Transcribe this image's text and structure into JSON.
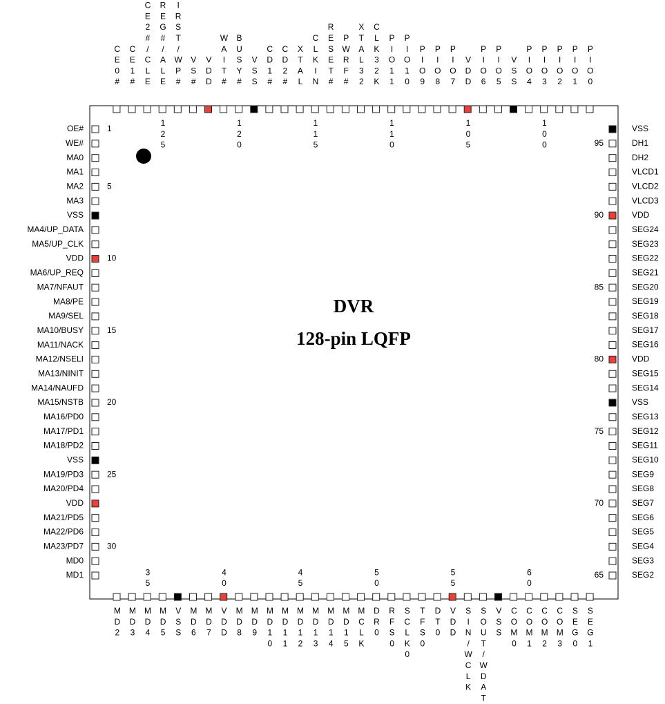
{
  "title": "DVR",
  "subtitle": "128-pin LQFP",
  "pin_colors": {
    "VDD": "#e8413c",
    "VSS": "#000000"
  },
  "left": {
    "pins": [
      "OE#",
      "WE#",
      "MA0",
      "MA1",
      "MA2",
      "MA3",
      "VSS",
      "MA4/UP_DATA",
      "MA5/UP_CLK",
      "VDD",
      "MA6/UP_REQ",
      "MA7/NFAUT",
      "MA8/PE",
      "MA9/SEL",
      "MA10/BUSY",
      "MA11/NACK",
      "MA12/NSELI",
      "MA13/NINIT",
      "MA14/NAUFD",
      "MA15/NSTB",
      "MA16/PD0",
      "MA17/PD1",
      "MA18/PD2",
      "VSS",
      "MA19/PD3",
      "MA20/PD4",
      "VDD",
      "MA21/PD5",
      "MA22/PD6",
      "MA23/PD7",
      "MD0",
      "MD1"
    ],
    "numbers": [
      1,
      null,
      null,
      null,
      5,
      null,
      null,
      null,
      null,
      10,
      null,
      null,
      null,
      null,
      15,
      null,
      null,
      null,
      null,
      20,
      null,
      null,
      null,
      null,
      25,
      null,
      null,
      null,
      null,
      30,
      null,
      null
    ]
  },
  "bottom": {
    "pins": [
      "MD2",
      "MD3",
      "MD4",
      "MD5",
      "VSS",
      "MD6",
      "MD7",
      "VDD",
      "MD8",
      "MD9",
      "MD10",
      "MD11",
      "MD12",
      "MD13",
      "MD14",
      "MD15",
      "MCLK",
      "DR0",
      "RFS0",
      "SCLK0",
      "TFS0",
      "DT0",
      "VDD",
      "SIN/WCLK",
      "SOUT/WDATA",
      "VSS",
      "COM0",
      "COM1",
      "COM2",
      "COM3",
      "SEG0",
      "SEG1"
    ],
    "numbers": [
      null,
      null,
      35,
      null,
      null,
      null,
      null,
      40,
      null,
      null,
      null,
      null,
      45,
      null,
      null,
      null,
      null,
      50,
      null,
      null,
      null,
      null,
      55,
      null,
      null,
      null,
      null,
      60,
      null,
      null,
      null,
      null
    ]
  },
  "right": {
    "pins": [
      "SEG2",
      "SEG3",
      "SEG4",
      "SEG5",
      "SEG6",
      "SEG7",
      "SEG8",
      "SEG9",
      "SEG10",
      "SEG11",
      "SEG12",
      "SEG13",
      "VSS",
      "SEG14",
      "SEG15",
      "VDD",
      "SEG16",
      "SEG17",
      "SEG18",
      "SEG19",
      "SEG20",
      "SEG21",
      "SEG22",
      "SEG23",
      "SEG24",
      "VDD",
      "VLCD3",
      "VLCD2",
      "VLCD1",
      "DH2",
      "DH1",
      "VSS"
    ],
    "numbers": [
      65,
      null,
      null,
      null,
      null,
      70,
      null,
      null,
      null,
      null,
      75,
      null,
      null,
      null,
      null,
      80,
      null,
      null,
      null,
      null,
      85,
      null,
      null,
      null,
      null,
      90,
      null,
      null,
      null,
      null,
      95,
      null
    ]
  },
  "top": {
    "pins": [
      "PIO0",
      "PIO1",
      "PIO2",
      "PIO3",
      "PIO4",
      "VSS",
      "PIO5",
      "PIO6",
      "VDD",
      "PIO7",
      "PIO8",
      "PIO9",
      "PIO10",
      "PIO11",
      "CLK32K",
      "XTAL32",
      "PWRF#",
      "RESET#",
      "CLKIN",
      "XTAL",
      "CD2#",
      "CD1#",
      "VSS",
      "BUSY#",
      "WAIT#",
      "VDD",
      "VS#",
      "CFIRST/WP#",
      "REG#/ALE",
      "CE2#/CLE",
      "CE1#",
      "CE0#"
    ],
    "numbers": [
      null,
      null,
      null,
      100,
      null,
      null,
      null,
      null,
      105,
      null,
      null,
      null,
      null,
      110,
      null,
      null,
      null,
      null,
      115,
      null,
      null,
      null,
      null,
      120,
      null,
      null,
      null,
      null,
      125,
      null,
      null,
      null
    ]
  }
}
